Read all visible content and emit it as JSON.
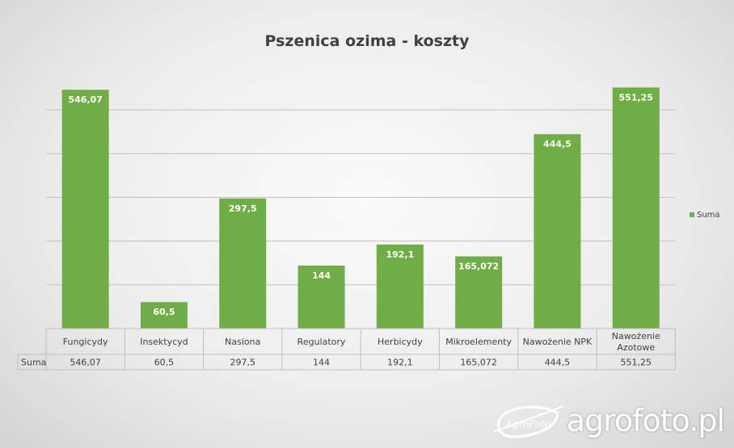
{
  "colors": {
    "bar": "#70ad47",
    "grid": "#bfbfbf",
    "text": "#404040",
    "label": "#ffffff"
  },
  "chart_data": {
    "type": "bar",
    "title": "Pszenica ozima - koszty",
    "categories": [
      [
        "Fungicydy"
      ],
      [
        "Insektycyd"
      ],
      [
        "Nasiona"
      ],
      [
        "Regulatory"
      ],
      [
        "Herbicydy"
      ],
      [
        "Mikroelementy"
      ],
      [
        "Nawożenie NPK"
      ],
      [
        "Nawożenie",
        "Azotowe"
      ]
    ],
    "series": [
      {
        "name": "Suma",
        "values": [
          546.07,
          60.5,
          297.5,
          144,
          192.1,
          165.072,
          444.5,
          551.25
        ],
        "labels": [
          "546,07",
          "60,5",
          "297,5",
          "144",
          "192,1",
          "165,072",
          "444,5",
          "551,25"
        ]
      }
    ],
    "ylim": [
      0,
      600
    ],
    "grid": true,
    "data_table": true,
    "legend": "right"
  },
  "watermark": {
    "text": "agrofoto.pl",
    "logo_text": "AgroFoto",
    "logo_icon": "agrofoto-logo-icon"
  }
}
